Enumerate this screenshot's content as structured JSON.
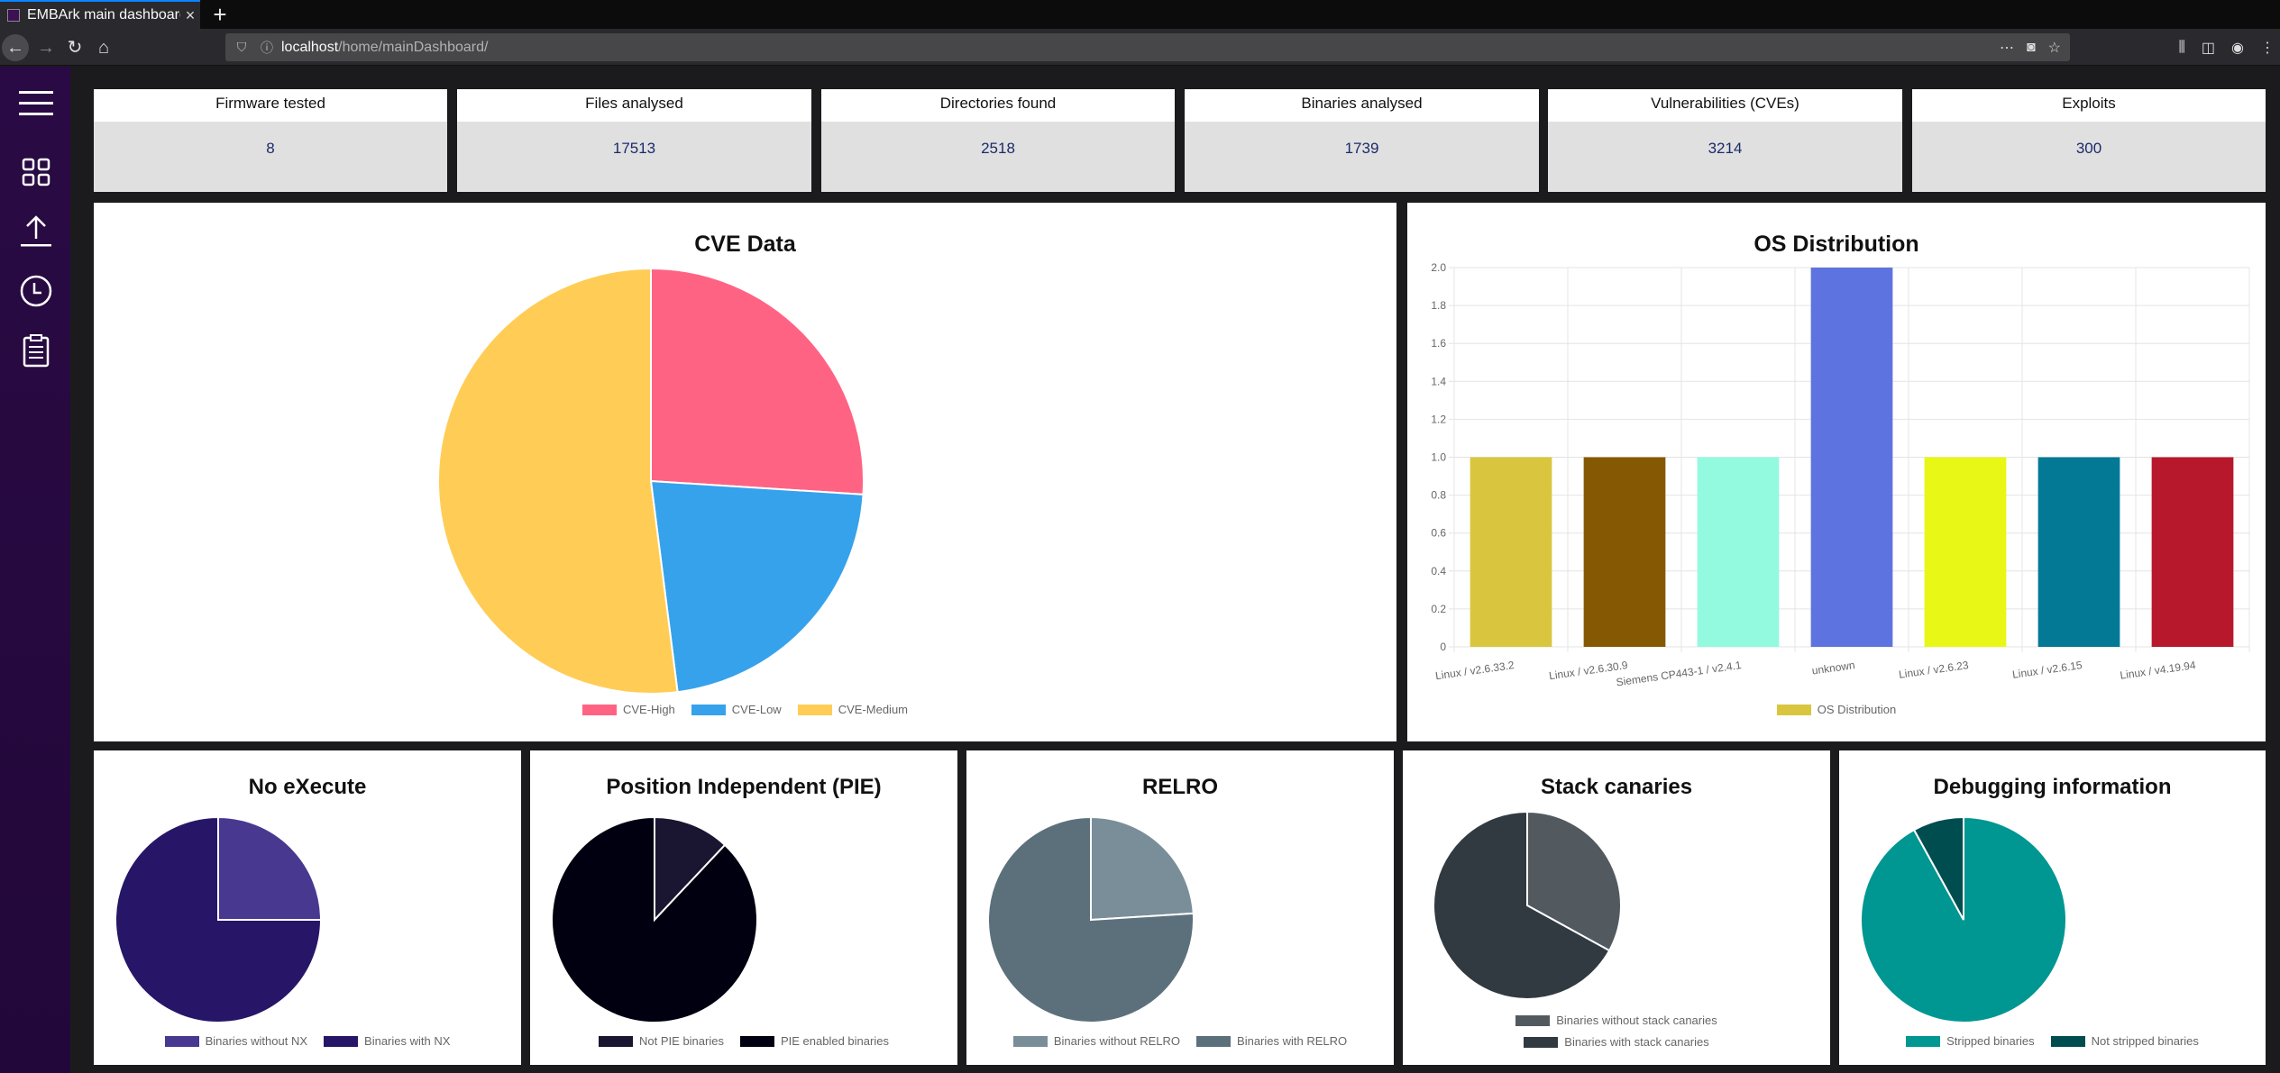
{
  "browser": {
    "tab_title": "EMBArk main dashboard",
    "url_host": "localhost",
    "url_path": "/home/mainDashboard/"
  },
  "sidebar": {
    "icons": [
      "menu-icon",
      "dashboard-grid-icon",
      "upload-icon",
      "clock-icon",
      "report-clipboard-icon"
    ]
  },
  "stats": [
    {
      "label": "Firmware tested",
      "value": "8"
    },
    {
      "label": "Files analysed",
      "value": "17513"
    },
    {
      "label": "Directories found",
      "value": "2518"
    },
    {
      "label": "Binaries analysed",
      "value": "1739"
    },
    {
      "label": "Vulnerabilities (CVEs)",
      "value": "3214"
    },
    {
      "label": "Exploits",
      "value": "300"
    }
  ],
  "chart_data": [
    {
      "type": "pie",
      "title": "CVE Data",
      "labels": [
        "CVE-High",
        "CVE-Low",
        "CVE-Medium"
      ],
      "values": [
        26,
        22,
        52
      ],
      "colors": [
        "#ff6384",
        "#36a2eb",
        "#ffcd56"
      ],
      "legend": "bottom"
    },
    {
      "type": "bar",
      "title": "OS Distribution",
      "categories": [
        "Linux / v2.6.33.2",
        "Linux / v2.6.30.9",
        "Siemens CP443-1 / v2.4.1",
        "unknown",
        "Linux / v2.6.23",
        "Linux / v2.6.15",
        "Linux / v4.19.94"
      ],
      "values": [
        1,
        1,
        1,
        2,
        1,
        1,
        1
      ],
      "colors": [
        "#d9c63e",
        "#855904",
        "#93fadf",
        "#5c73e0",
        "#e8f716",
        "#037995",
        "#b8182c"
      ],
      "ylim": [
        0,
        2
      ],
      "yticks": [
        "0",
        "0.2",
        "0.4",
        "0.6",
        "0.8",
        "1.0",
        "1.2",
        "1.4",
        "1.6",
        "1.8",
        "2.0"
      ],
      "series_name": "OS Distribution",
      "grid": true,
      "legend": "bottom"
    },
    {
      "type": "pie",
      "title": "No eXecute",
      "labels": [
        "Binaries without NX",
        "Binaries with NX"
      ],
      "values": [
        25,
        75
      ],
      "colors": [
        "#483890",
        "#271667"
      ],
      "legend": "bottom"
    },
    {
      "type": "pie",
      "title": "Position Independent (PIE)",
      "labels": [
        "Not PIE binaries",
        "PIE enabled binaries"
      ],
      "values": [
        12,
        88
      ],
      "colors": [
        "#1a1530",
        "#000010"
      ],
      "legend": "bottom"
    },
    {
      "type": "pie",
      "title": "RELRO",
      "labels": [
        "Binaries without RELRO",
        "Binaries with RELRO"
      ],
      "values": [
        24,
        76
      ],
      "colors": [
        "#7a8e99",
        "#5c707c"
      ],
      "legend": "bottom"
    },
    {
      "type": "pie",
      "title": "Stack canaries",
      "labels": [
        "Binaries without stack canaries",
        "Binaries with stack canaries"
      ],
      "values": [
        33,
        67
      ],
      "colors": [
        "#525a60",
        "#313a41"
      ],
      "legend": "bottom-stacked"
    },
    {
      "type": "pie",
      "title": "Debugging information",
      "labels": [
        "Stripped binaries",
        "Not stripped binaries"
      ],
      "values": [
        92,
        8
      ],
      "colors": [
        "#009691",
        "#004d50"
      ],
      "legend": "bottom"
    }
  ]
}
